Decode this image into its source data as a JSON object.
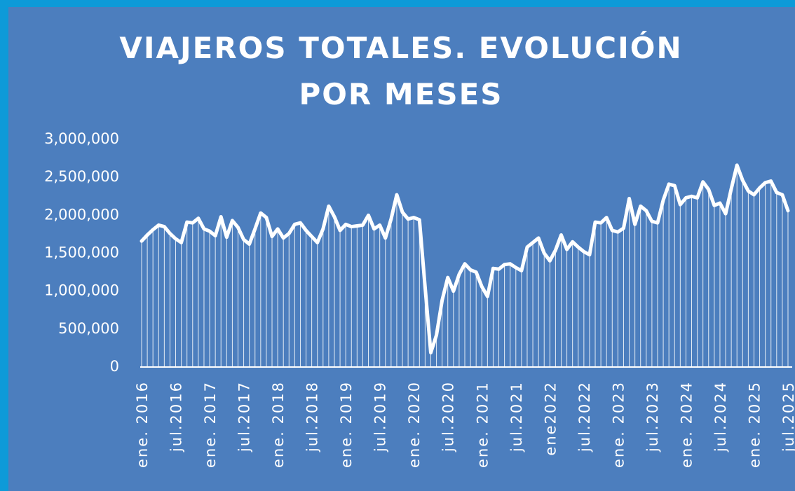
{
  "chart_data": {
    "type": "line",
    "title": "VIAJEROS TOTALES. EVOLUCIÓN POR MESES",
    "categories": [
      "ene. 2016",
      null,
      null,
      null,
      null,
      null,
      "jul.2016",
      null,
      null,
      null,
      null,
      null,
      "ene. 2017",
      null,
      null,
      null,
      null,
      null,
      "jul.2017",
      null,
      null,
      null,
      null,
      null,
      "ene. 2018",
      null,
      null,
      null,
      null,
      null,
      "jul.2018",
      null,
      null,
      null,
      null,
      null,
      "ene. 2019",
      null,
      null,
      null,
      null,
      null,
      "jul.2019",
      null,
      null,
      null,
      null,
      null,
      "ene. 2020",
      null,
      null,
      null,
      null,
      null,
      "jul.2020",
      null,
      null,
      null,
      null,
      null,
      "ene. 2021",
      null,
      null,
      null,
      null,
      null,
      "jul.2021",
      null,
      null,
      null,
      null,
      null,
      "ene2022",
      null,
      null,
      null,
      null,
      null,
      "jul.2022",
      null,
      null,
      null,
      null,
      null,
      "ene. 2023",
      null,
      null,
      null,
      null,
      null,
      "jul.2023",
      null,
      null,
      null,
      null,
      null,
      "ene. 2024",
      null,
      null,
      null,
      null,
      null,
      "jul.2024",
      null,
      null,
      null,
      null,
      null,
      "ene. 2025",
      null,
      null,
      null,
      null,
      null,
      "jul.2025"
    ],
    "series": [
      {
        "name": "Viajeros",
        "color": "#ffffff",
        "values": [
          1660000,
          1740000,
          1810000,
          1870000,
          1850000,
          1760000,
          1690000,
          1640000,
          1910000,
          1900000,
          1960000,
          1820000,
          1790000,
          1730000,
          1980000,
          1710000,
          1930000,
          1840000,
          1680000,
          1620000,
          1820000,
          2030000,
          1970000,
          1720000,
          1820000,
          1700000,
          1760000,
          1880000,
          1900000,
          1800000,
          1720000,
          1640000,
          1820000,
          2120000,
          1980000,
          1800000,
          1880000,
          1850000,
          1860000,
          1870000,
          2000000,
          1820000,
          1870000,
          1700000,
          1950000,
          2270000,
          2040000,
          1950000,
          1970000,
          1940000,
          1050000,
          190000,
          420000,
          880000,
          1180000,
          1000000,
          1220000,
          1360000,
          1280000,
          1250000,
          1060000,
          930000,
          1300000,
          1290000,
          1350000,
          1360000,
          1310000,
          1270000,
          1580000,
          1640000,
          1700000,
          1500000,
          1400000,
          1540000,
          1740000,
          1550000,
          1650000,
          1580000,
          1520000,
          1480000,
          1910000,
          1900000,
          1970000,
          1800000,
          1780000,
          1830000,
          2220000,
          1880000,
          2120000,
          2060000,
          1920000,
          1900000,
          2200000,
          2410000,
          2390000,
          2140000,
          2230000,
          2250000,
          2230000,
          2440000,
          2340000,
          2130000,
          2160000,
          2020000,
          2350000,
          2660000,
          2460000,
          2320000,
          2270000,
          2360000,
          2430000,
          2450000,
          2300000,
          2270000,
          2060000
        ]
      }
    ],
    "ylim": [
      0,
      3000000
    ],
    "yticks": [
      0,
      {
        "value": 500000,
        "label": "500,000"
      },
      {
        "value": 1000000,
        "label": "1,000,000"
      },
      {
        "value": 1500000,
        "label": "1,500,000"
      },
      {
        "value": 2000000,
        "label": "2,000,000"
      },
      {
        "value": 2500000,
        "label": "2,500,000"
      },
      {
        "value": 3000000,
        "label": "3,000,000"
      }
    ],
    "grid": false
  }
}
